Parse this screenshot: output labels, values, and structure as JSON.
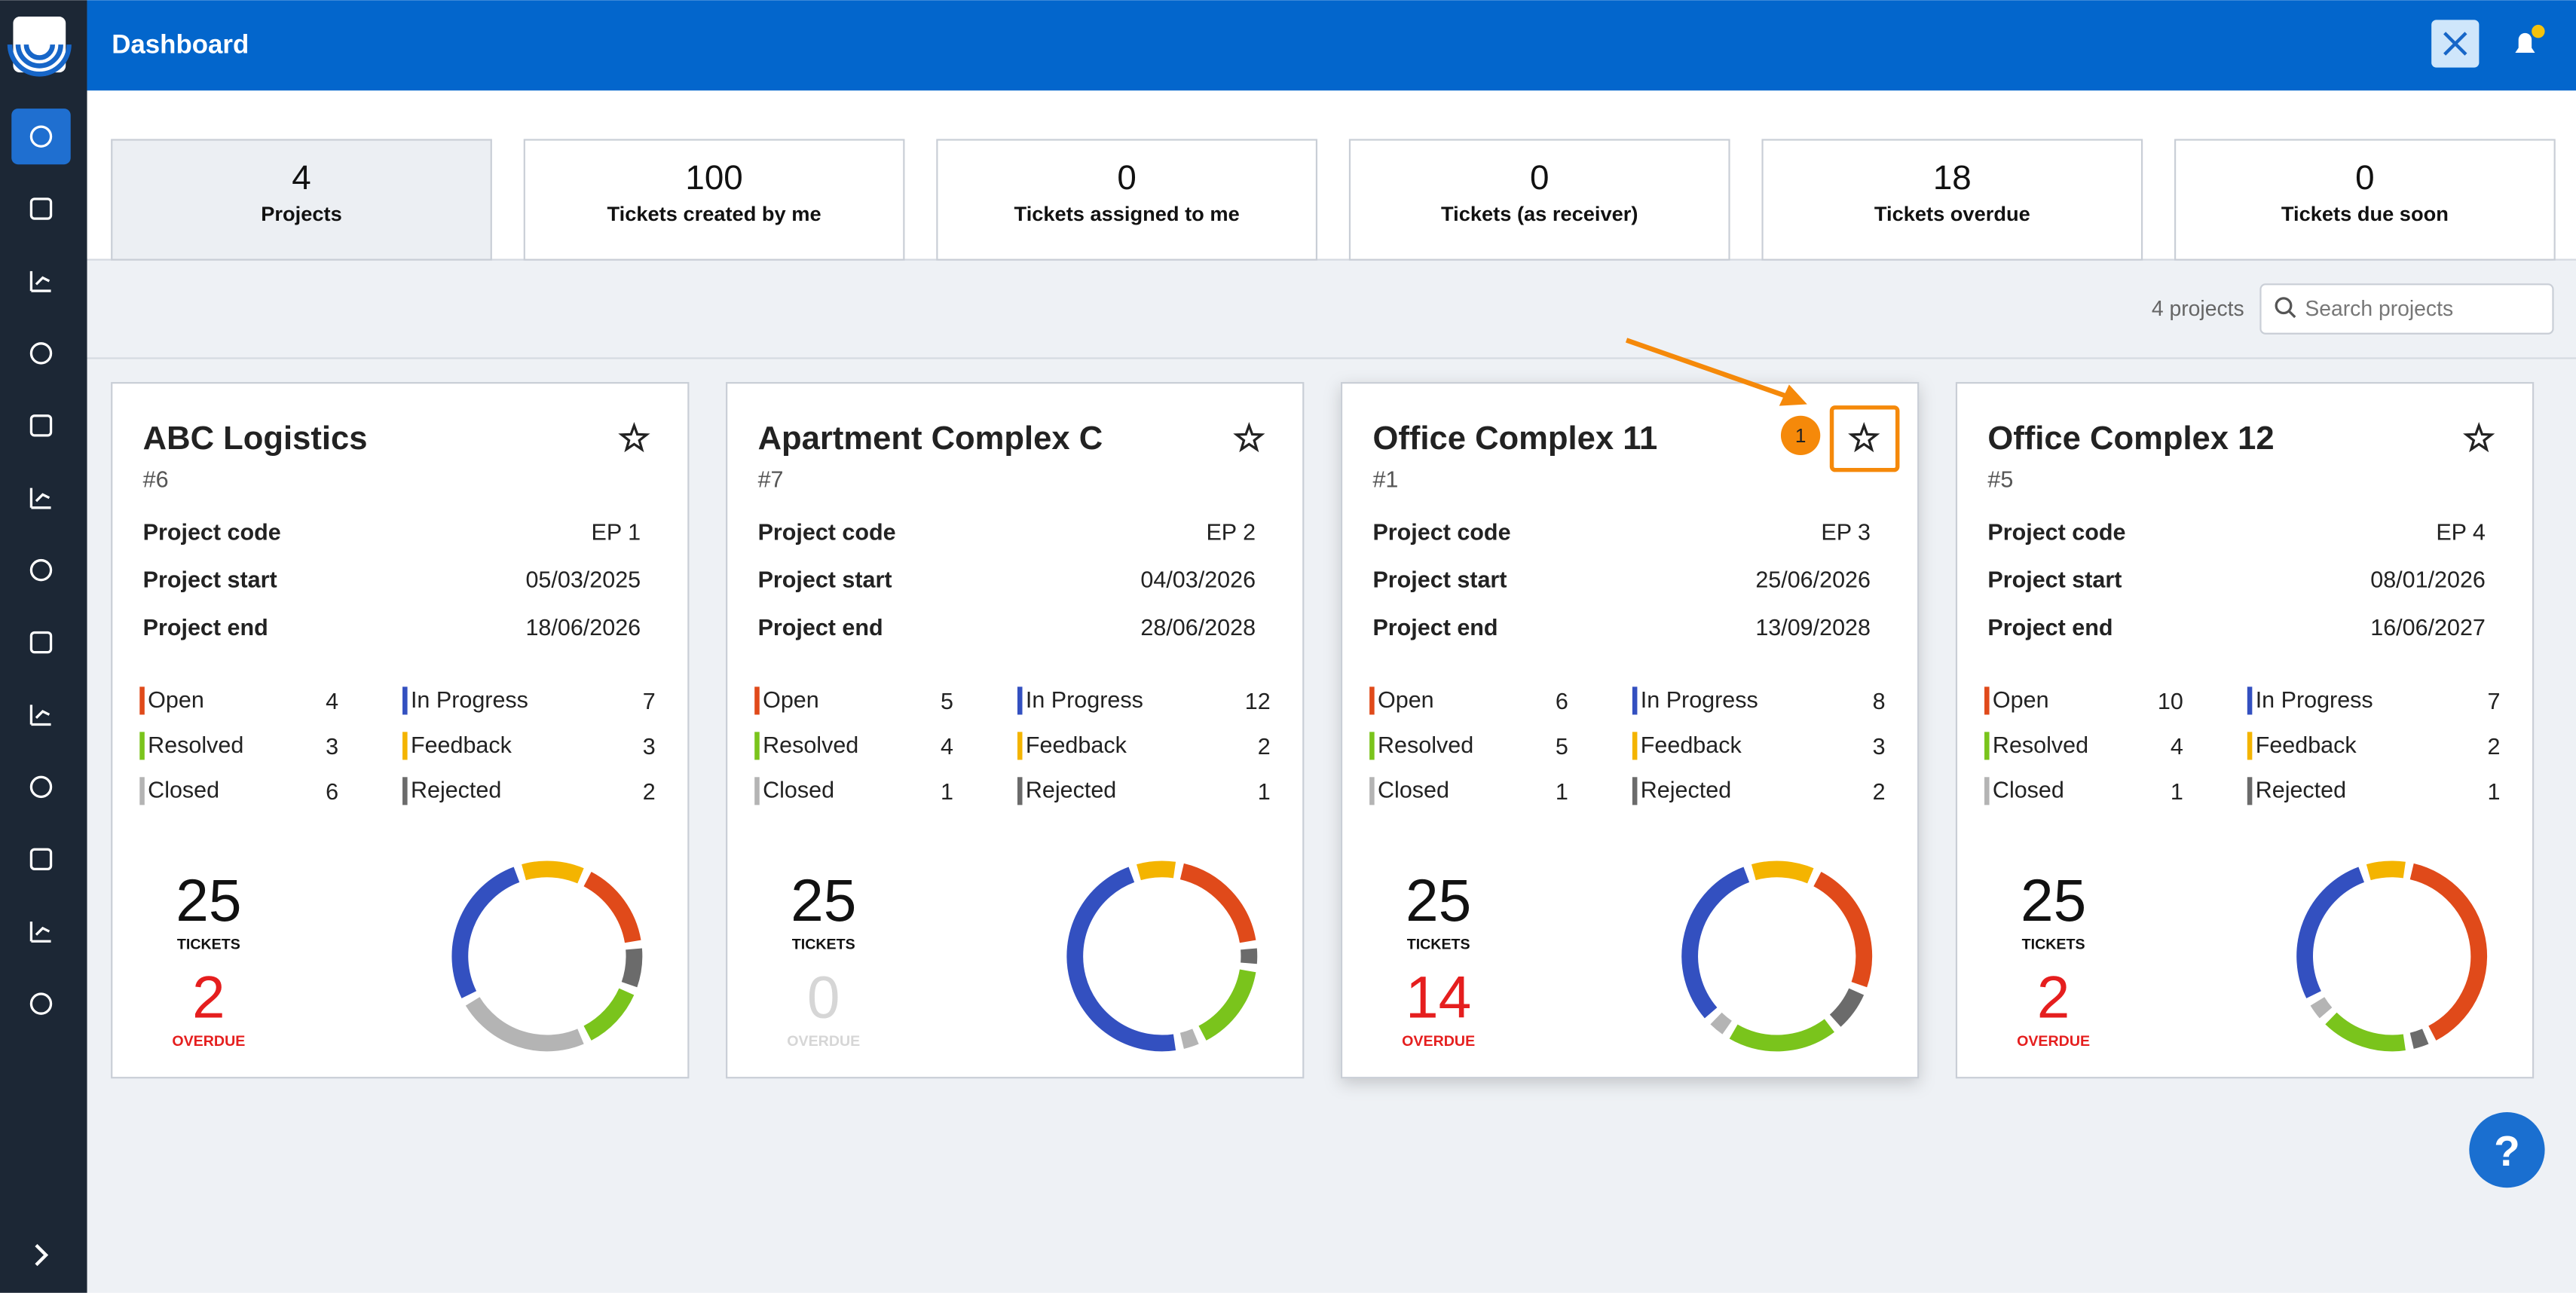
{
  "header": {
    "title": "Dashboard"
  },
  "stats": [
    {
      "value": 4,
      "label": "Projects"
    },
    {
      "value": 100,
      "label": "Tickets created by me"
    },
    {
      "value": 0,
      "label": "Tickets assigned to me"
    },
    {
      "value": 0,
      "label": "Tickets (as receiver)"
    },
    {
      "value": 18,
      "label": "Tickets overdue"
    },
    {
      "value": 0,
      "label": "Tickets due soon"
    }
  ],
  "toolbar": {
    "count": "4 projects",
    "search_placeholder": "Search projects"
  },
  "field_labels": [
    "Project code",
    "Project start",
    "Project end"
  ],
  "statuses": [
    {
      "name": "Open",
      "color": "#e04a1a"
    },
    {
      "name": "Resolved",
      "color": "#7ac41c"
    },
    {
      "name": "Closed",
      "color": "#b4b4b4"
    },
    {
      "name": "In Progress",
      "color": "#3350c0"
    },
    {
      "name": "Feedback",
      "color": "#f4b400"
    },
    {
      "name": "Rejected",
      "color": "#6b6b6b"
    }
  ],
  "totals_label": "TICKETS",
  "overdue_label": "OVERDUE",
  "projects": [
    {
      "name": "ABC Logistics",
      "id": "#6",
      "fields": [
        "EP 1",
        "05/03/2025",
        "18/06/2026"
      ],
      "counts": [
        4,
        3,
        6,
        7,
        3,
        2
      ],
      "total": 25,
      "overdue": 2
    },
    {
      "name": "Apartment Complex C",
      "id": "#7",
      "fields": [
        "EP 2",
        "04/03/2026",
        "28/06/2028"
      ],
      "counts": [
        5,
        4,
        1,
        12,
        2,
        1
      ],
      "total": 25,
      "overdue": 0
    },
    {
      "name": "Office Complex 11",
      "id": "#1",
      "fields": [
        "EP 3",
        "25/06/2026",
        "13/09/2028"
      ],
      "counts": [
        6,
        5,
        1,
        8,
        3,
        2
      ],
      "total": 25,
      "overdue": 14
    },
    {
      "name": "Office Complex 12",
      "id": "#5",
      "fields": [
        "EP 4",
        "08/01/2026",
        "16/06/2027"
      ],
      "counts": [
        10,
        4,
        1,
        7,
        2,
        1
      ],
      "total": 25,
      "overdue": 2
    }
  ],
  "annotation": {
    "badge": "1"
  },
  "help": {
    "label": "?"
  }
}
